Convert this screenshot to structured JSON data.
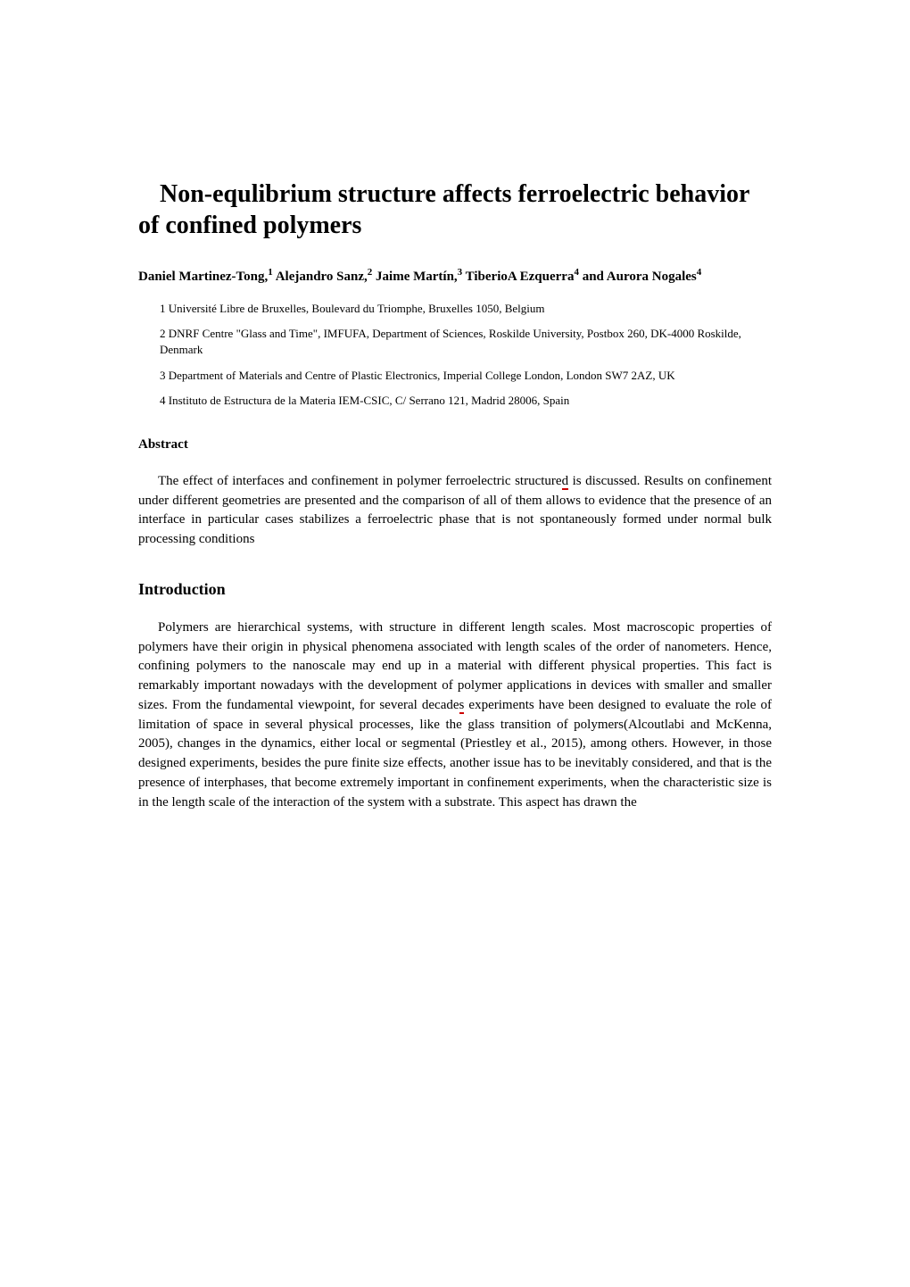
{
  "title": "Non-equlibrium structure affects ferroelectric behavior of confined polymers",
  "authors_html": "Daniel Martinez-Tong,<sup>1</sup> Alejandro Sanz,<sup>2</sup> Jaime Martín,<sup>3</sup> TiberioA Ezquerra<sup>4</sup> and Aurora Nogales<sup>4</sup>",
  "affiliations": [
    "1 Université Libre de Bruxelles, Boulevard du Triomphe, Bruxelles 1050, Belgium",
    "2 DNRF Centre \"Glass and Time\", IMFUFA, Department of Sciences, Roskilde University, Postbox 260, DK-4000 Roskilde, Denmark",
    "3 Department of Materials and Centre of Plastic Electronics, Imperial College London, London SW7 2AZ, UK",
    "4 Instituto de Estructura de la Materia IEM-CSIC, C/ Serrano 121, Madrid 28006, Spain"
  ],
  "abstract_heading": "Abstract",
  "abstract_text": "The effect of interfaces and confinement in polymer ferroelectric structured is discussed. Results on confinement under different geometries are presented and the comparison of all of them allows to evidence that the presence of an interface in particular cases stabilizes a ferroelectric phase that is not spontaneously formed under normal bulk processing conditions",
  "intro_heading": "Introduction",
  "intro_text": "Polymers are hierarchical systems, with structure in different length scales. Most macroscopic properties of polymers have their origin in physical phenomena associated with length scales of the order of nanometers. Hence, confining polymers to the nanoscale may end up in a material with different physical properties. This fact is remarkably important nowadays with the development of polymer applications in devices with smaller and smaller sizes. From the fundamental viewpoint, for several decades experiments have been designed to evaluate the role of limitation of space in several physical processes, like the glass transition of polymers(Alcoutlabi and McKenna, 2005), changes in the dynamics, either local or segmental (Priestley et al., 2015), among others. However, in those designed experiments, besides the pure finite size effects, another issue has to be inevitably considered, and that is the presence of interphases, that become extremely important in confinement experiments, when the characteristic size is in the length scale of the interaction of the system with a substrate. This aspect has drawn the"
}
